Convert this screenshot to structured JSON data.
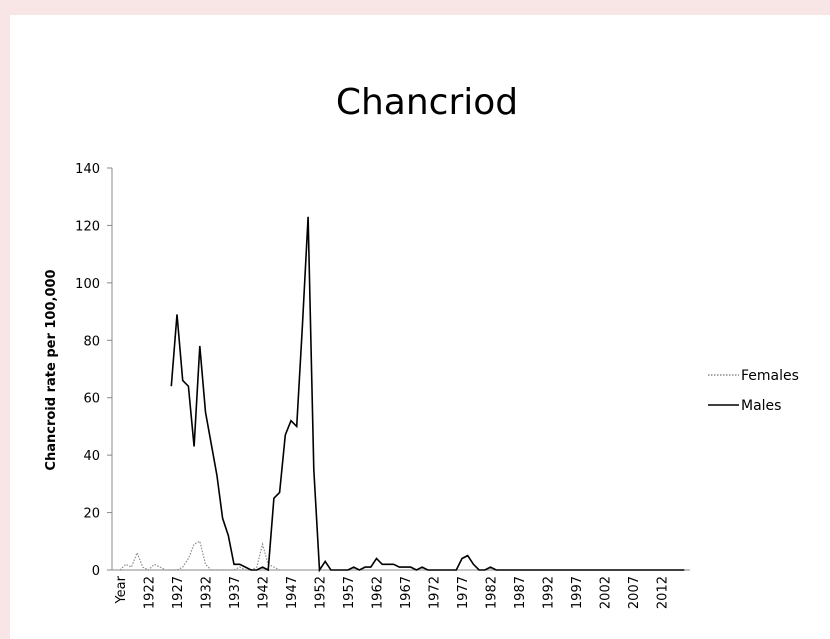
{
  "chart_data": {
    "type": "line",
    "title": "Chancriod",
    "y_label": "Chancroid  rate per 100,000",
    "categories": [
      "Year",
      null,
      null,
      null,
      null,
      "1922",
      null,
      null,
      null,
      null,
      "1927",
      null,
      null,
      null,
      null,
      "1932",
      null,
      null,
      null,
      null,
      "1937",
      null,
      null,
      null,
      null,
      "1942",
      null,
      null,
      null,
      null,
      "1947",
      null,
      null,
      null,
      null,
      "1952",
      null,
      null,
      null,
      null,
      "1957",
      null,
      null,
      null,
      null,
      "1962",
      null,
      null,
      null,
      null,
      "1967",
      null,
      null,
      null,
      null,
      "1972",
      null,
      null,
      null,
      null,
      "1977",
      null,
      null,
      null,
      null,
      "1982",
      null,
      null,
      null,
      null,
      "1987",
      null,
      null,
      null,
      null,
      "1992",
      null,
      null,
      null,
      null,
      "1997",
      null,
      null,
      null,
      null,
      "2002",
      null,
      null,
      null,
      null,
      "2007",
      null,
      null,
      null,
      null,
      "2012",
      null,
      null,
      null,
      null
    ],
    "series": [
      {
        "name": "Females",
        "color": "#8c8c8c",
        "line_style": "dotted",
        "values": [
          0,
          2,
          1,
          6,
          1,
          0,
          2,
          1,
          0,
          0,
          0,
          1,
          4,
          9,
          10,
          2,
          0,
          0,
          0,
          0,
          0,
          1,
          0,
          0,
          1,
          9,
          2,
          1,
          0,
          null,
          null,
          null,
          null,
          null,
          null,
          null,
          null,
          null,
          null,
          null,
          null,
          null,
          null,
          null,
          null,
          null,
          null,
          null,
          null,
          null,
          null,
          null,
          null,
          null,
          null,
          null,
          null,
          null,
          null,
          null,
          null,
          null,
          null,
          null,
          null,
          null,
          null,
          null,
          null,
          null,
          null,
          null,
          null,
          null,
          null,
          null,
          null,
          null,
          null,
          null,
          null,
          null,
          null,
          null,
          null,
          null,
          null,
          null,
          null,
          null,
          null,
          null,
          null,
          null,
          null,
          null,
          null,
          null,
          null,
          null
        ]
      },
      {
        "name": "Males",
        "color": "#000000",
        "line_style": "solid",
        "values": [
          null,
          null,
          null,
          null,
          null,
          null,
          null,
          null,
          null,
          64,
          89,
          66,
          64,
          43,
          78,
          55,
          44,
          33,
          18,
          12,
          2,
          2,
          1,
          0,
          0,
          1,
          0,
          25,
          27,
          47,
          52,
          50,
          85,
          123,
          35,
          0,
          3,
          0,
          0,
          0,
          0,
          1,
          0,
          1,
          1,
          4,
          2,
          2,
          2,
          1,
          1,
          1,
          0,
          1,
          0,
          0,
          0,
          0,
          0,
          0,
          4,
          5,
          2,
          0,
          0,
          1,
          0,
          0,
          0,
          0,
          0,
          0,
          0,
          0,
          0,
          0,
          0,
          0,
          0,
          0,
          0,
          0,
          0,
          0,
          0,
          0,
          0,
          0,
          0,
          0,
          0,
          0,
          0,
          0,
          0,
          0,
          0,
          0,
          0,
          0
        ]
      }
    ],
    "ylim": [
      0,
      140
    ],
    "yticks": [
      0,
      20,
      40,
      60,
      80,
      100,
      120,
      140
    ],
    "grid": false,
    "legend": "right"
  }
}
